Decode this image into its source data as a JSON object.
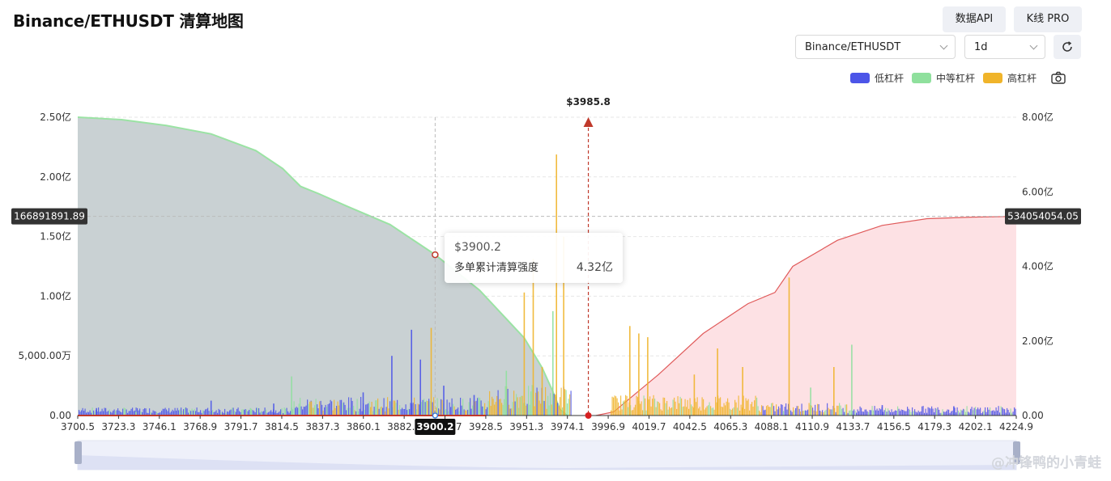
{
  "header": {
    "title": "Binance/ETHUSDT 清算地图",
    "api_button": "数据API",
    "kline_button": "K线 PRO"
  },
  "controls": {
    "exchange_value": "Binance/ETHUSDT",
    "timeframe_value": "1d",
    "refresh_icon": "refresh-icon",
    "camera_icon": "camera-icon"
  },
  "legend": [
    {
      "label": "低杠杆",
      "color": "#4c55e8"
    },
    {
      "label": "中等杠杆",
      "color": "#8fe09d"
    },
    {
      "label": "高杠杆",
      "color": "#f0b42a"
    }
  ],
  "tooltip": {
    "price": "$3900.2",
    "label": "多单累计清算强度",
    "value": "4.32亿"
  },
  "watermark": "@冲锋鸭的小青蛙",
  "chart_data": {
    "type": "area",
    "current_price_label": "$3985.8",
    "current_price": 3985.8,
    "crosshair_x_label": "3900.2",
    "left_axis_marker": "166891891.89",
    "right_axis_marker": "534054054.05",
    "x_range": [
      3700.5,
      4224.9
    ],
    "x_tick_labels": [
      "3700.5",
      "3723.3",
      "3746.1",
      "3768.9",
      "3791.7",
      "3814.5",
      "3837.3",
      "3860.1",
      "3882.9",
      "3905.7",
      "3928.5",
      "3951.3",
      "3974.1",
      "3996.9",
      "4019.7",
      "4042.5",
      "4065.3",
      "4088.1",
      "4110.9",
      "4133.7",
      "4156.5",
      "4179.3",
      "4202.1",
      "4224.9"
    ],
    "y_left": {
      "min": 0,
      "max": 250000000,
      "tick_values": [
        0,
        50000000,
        100000000,
        150000000,
        200000000,
        250000000
      ],
      "tick_labels": [
        "0.00",
        "5,000.00万",
        "1.00亿",
        "1.50亿",
        "2.00亿",
        "2.50亿"
      ]
    },
    "y_right": {
      "min": 0,
      "max": 800000000,
      "tick_values": [
        0,
        200000000,
        400000000,
        600000000,
        800000000
      ],
      "tick_labels": [
        "0.00",
        "2.00亿",
        "4.00亿",
        "6.00亿",
        "8.00亿"
      ]
    },
    "grid": true,
    "long_cumulative": {
      "x": [
        3700.5,
        3725,
        3750,
        3775,
        3800,
        3815,
        3825,
        3835,
        3850,
        3875,
        3900,
        3925,
        3950,
        3960,
        3966,
        3970,
        3974.1
      ],
      "y": [
        250000000,
        248000000,
        243000000,
        236000000,
        222000000,
        207000000,
        192000000,
        186000000,
        176000000,
        160000000,
        135000000,
        105000000,
        65000000,
        40000000,
        20000000,
        5000000,
        0
      ]
    },
    "short_cumulative": {
      "x": [
        3990,
        4000,
        4025,
        4050,
        4075,
        4090,
        4100,
        4125,
        4150,
        4175,
        4200,
        4224.9
      ],
      "y": [
        0,
        10000000,
        110000000,
        220000000,
        300000000,
        330000000,
        400000000,
        470000000,
        510000000,
        528000000,
        532000000,
        534000000
      ]
    },
    "liquidation_spikes": [
      {
        "x": 3711,
        "value": 20000000,
        "level": "low"
      },
      {
        "x": 3733,
        "value": 10000000,
        "level": "mid"
      },
      {
        "x": 3775,
        "value": 40000000,
        "level": "low"
      },
      {
        "x": 3797,
        "value": 20000000,
        "level": "mid"
      },
      {
        "x": 3810,
        "value": 32000000,
        "level": "low"
      },
      {
        "x": 3820,
        "value": 105000000,
        "level": "mid"
      },
      {
        "x": 3831,
        "value": 38000000,
        "level": "high"
      },
      {
        "x": 3860,
        "value": 62000000,
        "level": "low"
      },
      {
        "x": 3876,
        "value": 160000000,
        "level": "low"
      },
      {
        "x": 3887,
        "value": 230000000,
        "level": "low"
      },
      {
        "x": 3892,
        "value": 150000000,
        "level": "low"
      },
      {
        "x": 3898,
        "value": 235000000,
        "level": "high"
      },
      {
        "x": 3905,
        "value": 80000000,
        "level": "low"
      },
      {
        "x": 3922,
        "value": 55000000,
        "level": "low"
      },
      {
        "x": 3940,
        "value": 120000000,
        "level": "mid"
      },
      {
        "x": 3950,
        "value": 330000000,
        "level": "high"
      },
      {
        "x": 3955,
        "value": 420000000,
        "level": "high"
      },
      {
        "x": 3960,
        "value": 130000000,
        "level": "high"
      },
      {
        "x": 3966,
        "value": 280000000,
        "level": "mid"
      },
      {
        "x": 3968,
        "value": 700000000,
        "level": "high"
      },
      {
        "x": 3972,
        "value": 480000000,
        "level": "high"
      },
      {
        "x": 4009,
        "value": 240000000,
        "level": "high"
      },
      {
        "x": 4014,
        "value": 220000000,
        "level": "high"
      },
      {
        "x": 4019,
        "value": 210000000,
        "level": "high"
      },
      {
        "x": 4045,
        "value": 110000000,
        "level": "high"
      },
      {
        "x": 4058,
        "value": 180000000,
        "level": "high"
      },
      {
        "x": 4072,
        "value": 130000000,
        "level": "high"
      },
      {
        "x": 4098,
        "value": 370000000,
        "level": "high"
      },
      {
        "x": 4110,
        "value": 75000000,
        "level": "mid"
      },
      {
        "x": 4123,
        "value": 130000000,
        "level": "high"
      },
      {
        "x": 4133,
        "value": 190000000,
        "level": "mid"
      },
      {
        "x": 4150,
        "value": 28000000,
        "level": "low"
      },
      {
        "x": 4190,
        "value": 25000000,
        "level": "low"
      }
    ]
  }
}
